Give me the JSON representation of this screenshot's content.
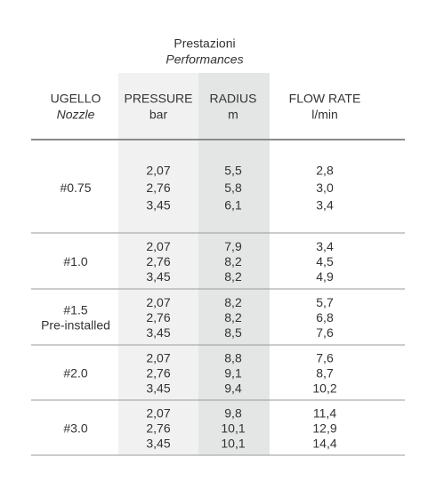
{
  "header": {
    "title": "Prestazioni",
    "subtitle": "Performances"
  },
  "table": {
    "columns": [
      {
        "label": "UGELLO",
        "sublabel": "Nozzle"
      },
      {
        "label": "PRESSURE",
        "sublabel": "bar"
      },
      {
        "label": "RADIUS",
        "sublabel": "m"
      },
      {
        "label": "FLOW RATE",
        "sublabel": "l/min"
      }
    ],
    "groups": [
      {
        "nozzle": [
          "#0.75"
        ],
        "rows": [
          [
            "2,07",
            "5,5",
            "2,8"
          ],
          [
            "2,76",
            "5,8",
            "3,0"
          ],
          [
            "3,45",
            "6,1",
            "3,4"
          ]
        ]
      },
      {
        "nozzle": [
          "#1.0"
        ],
        "rows": [
          [
            "2,07",
            "7,9",
            "3,4"
          ],
          [
            "2,76",
            "8,2",
            "4,5"
          ],
          [
            "3,45",
            "8,2",
            "4,9"
          ]
        ]
      },
      {
        "nozzle": [
          "#1.5",
          "Pre-installed"
        ],
        "rows": [
          [
            "2,07",
            "8,2",
            "5,7"
          ],
          [
            "2,76",
            "8,2",
            "6,8"
          ],
          [
            "3,45",
            "8,5",
            "7,6"
          ]
        ]
      },
      {
        "nozzle": [
          "#2.0"
        ],
        "rows": [
          [
            "2,07",
            "8,8",
            "7,6"
          ],
          [
            "2,76",
            "9,1",
            "8,7"
          ],
          [
            "3,45",
            "9,4",
            "10,2"
          ]
        ]
      },
      {
        "nozzle": [
          "#3.0"
        ],
        "rows": [
          [
            "2,07",
            "9,8",
            "11,4"
          ],
          [
            "2,76",
            "10,1",
            "12,9"
          ],
          [
            "3,45",
            "10,1",
            "14,4"
          ]
        ]
      }
    ]
  }
}
